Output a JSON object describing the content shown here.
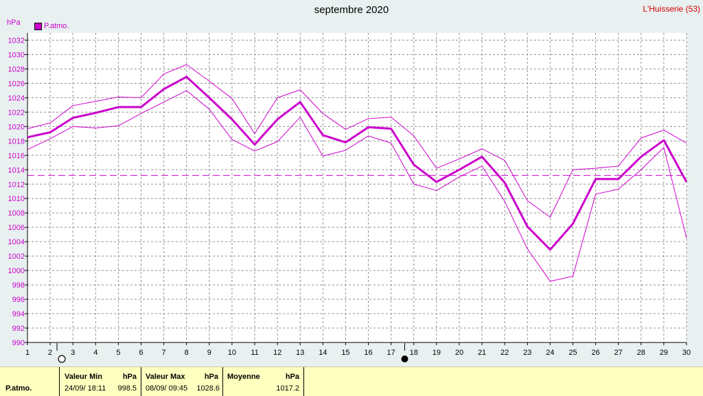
{
  "header": {
    "title": "septembre 2020",
    "station": "L'Huisserie (53)",
    "unit": "hPa"
  },
  "legend": {
    "label": "P.atmo.",
    "color": "#cc00cc"
  },
  "moon_phases": [
    {
      "day": 2.3,
      "phase": "new-moon"
    },
    {
      "day": 17.6,
      "phase": "full-moon"
    }
  ],
  "chart_data": {
    "type": "line",
    "title": "septembre 2020",
    "ylabel": "hPa",
    "x": [
      1,
      2,
      3,
      4,
      5,
      6,
      7,
      8,
      9,
      10,
      11,
      12,
      13,
      14,
      15,
      16,
      17,
      18,
      19,
      20,
      21,
      22,
      23,
      24,
      25,
      26,
      27,
      28,
      29,
      30
    ],
    "xlim": [
      1,
      30
    ],
    "ylim": [
      990,
      1033
    ],
    "yticks": [
      990,
      992,
      994,
      996,
      998,
      1000,
      1002,
      1004,
      1006,
      1008,
      1010,
      1012,
      1014,
      1016,
      1018,
      1020,
      1022,
      1024,
      1026,
      1028,
      1030,
      1032
    ],
    "grid": true,
    "series": [
      {
        "name": "P.atmo.",
        "color": "#cc00cc",
        "style": "thick",
        "values": [
          1018.5,
          1019.2,
          1021.2,
          1021.9,
          1022.7,
          1022.7,
          1025.2,
          1026.9,
          1024.0,
          1021.0,
          1017.5,
          1021.0,
          1023.4,
          1018.8,
          1017.8,
          1019.9,
          1019.7,
          1014.7,
          1012.3,
          1014.0,
          1015.8,
          1012.2,
          1006.1,
          1002.9,
          1006.5,
          1012.7,
          1012.7,
          1015.8,
          1018.1,
          1012.3
        ]
      },
      {
        "color": "#cc00cc",
        "style": "thin",
        "values": [
          1019.7,
          1020.5,
          1022.9,
          1023.5,
          1024.1,
          1024.0,
          1027.3,
          1028.6,
          1026.3,
          1023.9,
          1019.0,
          1024.0,
          1025.1,
          1021.8,
          1019.6,
          1021.1,
          1021.3,
          1018.7,
          1014.2,
          1015.5,
          1016.9,
          1015.3,
          1009.7,
          1007.4,
          1014.0,
          1014.2,
          1014.5,
          1018.4,
          1019.5,
          1017.7
        ]
      },
      {
        "color": "#cc00cc",
        "style": "thin",
        "values": [
          1016.8,
          1018.3,
          1020.0,
          1019.8,
          1020.1,
          1021.8,
          1023.4,
          1025.0,
          1022.4,
          1018.2,
          1016.6,
          1017.9,
          1021.3,
          1015.9,
          1016.7,
          1018.7,
          1017.7,
          1012.0,
          1011.1,
          1013.0,
          1014.5,
          1009.6,
          1003.0,
          998.5,
          999.2,
          1010.6,
          1011.3,
          1014.0,
          1017.1,
          1004.5
        ]
      }
    ],
    "mean_line": {
      "value": 1013.2,
      "color": "#cc00cc",
      "style": "dashed"
    }
  },
  "summary": {
    "row_label": "P.atmo.",
    "min": {
      "header": "Valeur Min",
      "unit": "hPa",
      "date": "24/09/  18:11",
      "value": "998.5"
    },
    "max": {
      "header": "Valeur Max",
      "unit": "hPa",
      "date": "08/09/  09:45",
      "value": "1028.6"
    },
    "mean": {
      "header": "Moyenne",
      "unit": "hPa",
      "value": "1017.2"
    }
  }
}
